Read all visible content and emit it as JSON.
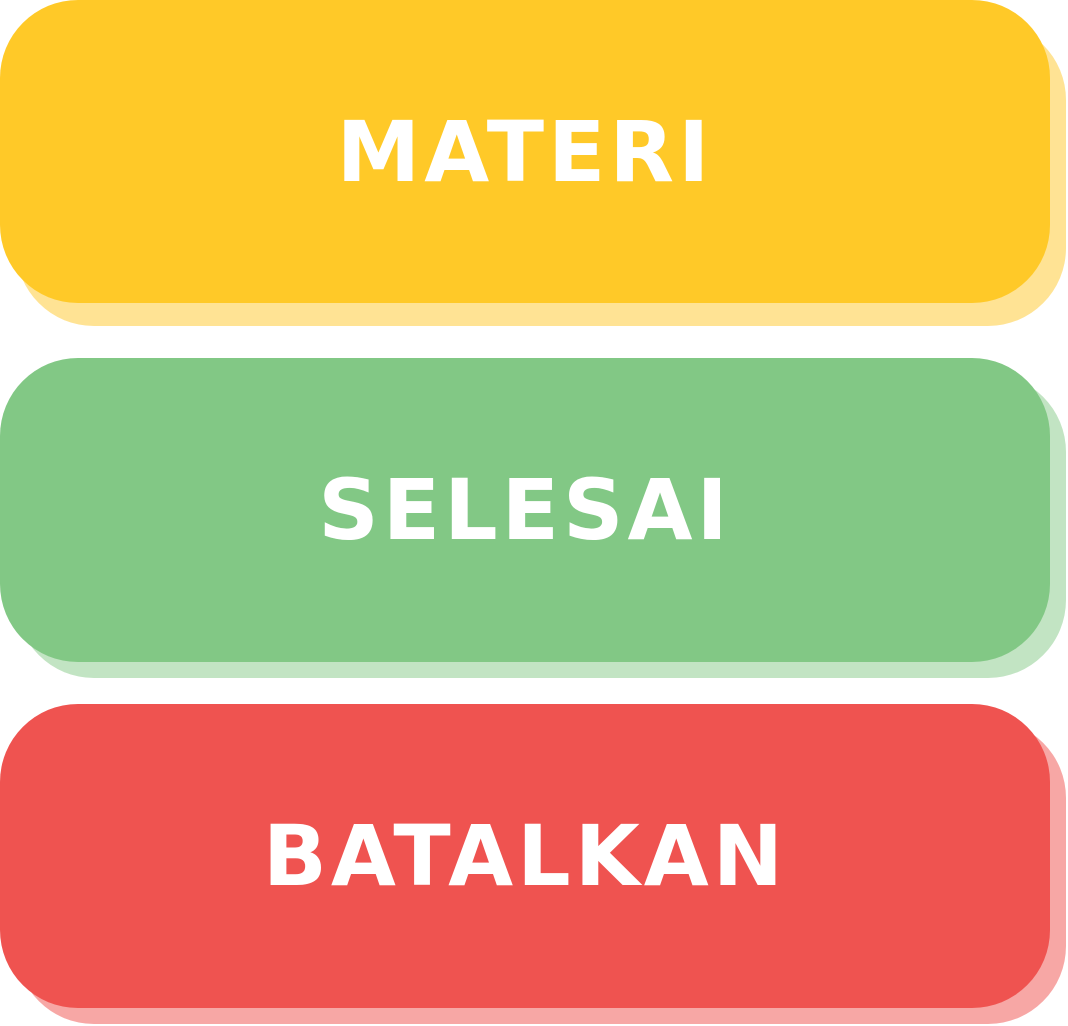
{
  "buttons": {
    "materi": {
      "label": "MATERI",
      "color": "#ffc928",
      "shadow_color": "#ffe394"
    },
    "selesai": {
      "label": "SELESAI",
      "color": "#82c885",
      "shadow_color": "#c2e4c3"
    },
    "batalkan": {
      "label": "BATALKAN",
      "color": "#ef5350",
      "shadow_color": "#f7a7a5"
    }
  }
}
